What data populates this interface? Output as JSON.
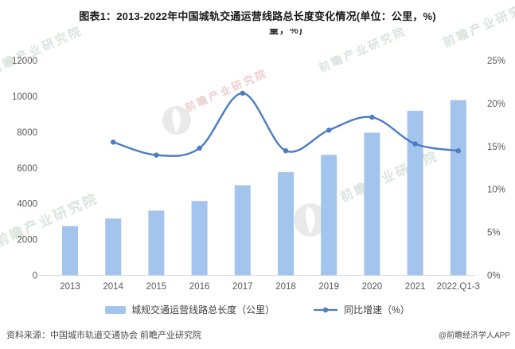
{
  "header": {
    "title": "图表1：2013-2022年中国城轨交通运营线路总长度变化情况(单位：公里，%)",
    "clipped_line": "量，%)"
  },
  "chart_data": {
    "type": "bar",
    "subtype": "bar-line-combo",
    "categories": [
      "2013",
      "2014",
      "2015",
      "2016",
      "2017",
      "2018",
      "2019",
      "2020",
      "2021",
      "2022.Q1-3"
    ],
    "series": [
      {
        "name": "城规交通运营线路总长度（公里）",
        "type": "bar",
        "axis": "left",
        "values": [
          2746,
          3173,
          3618,
          4153,
          5033,
          5761,
          6730,
          7970,
          9192,
          9788
        ]
      },
      {
        "name": "同比增速（%）",
        "type": "line",
        "axis": "right",
        "values": [
          null,
          15.5,
          14.0,
          14.8,
          21.2,
          14.5,
          16.9,
          18.4,
          15.3,
          14.5
        ]
      }
    ],
    "y_left_ticks": [
      "0",
      "2000",
      "4000",
      "6000",
      "8000",
      "10000",
      "12000"
    ],
    "y_right_ticks": [
      "0%",
      "5%",
      "10%",
      "15%",
      "20%",
      "25%"
    ],
    "ylim_left": [
      0,
      12000
    ],
    "ylim_right": [
      0,
      25
    ],
    "grid": false,
    "legend_position": "bottom",
    "title": "图表1：2013-2022年中国城轨交通运营线路总长度变化情况(单位：公里，%)"
  },
  "legend": {
    "bars_label": "城规交通运营线路总长度（公里）",
    "line_label": "同比增速（%）"
  },
  "footer": {
    "source": "资料来源：中国城市轨道交通协会 前瞻产业研究院",
    "brand": "@前瞻经济学人APP"
  },
  "watermark": {
    "text": "前瞻产业研究院"
  },
  "colors": {
    "bar": "#A3C4EC",
    "line": "#4B7CC4",
    "axis_line": "#D8D8D8",
    "tick_text": "#595959",
    "title_text": "#1A1A1A",
    "footer_text": "#4A4A4A",
    "watermark_green": "rgba(150,178,160,0.35)",
    "watermark_red": "rgba(205,130,125,0.38)",
    "logo_gray": "rgba(120,120,120,0.16)"
  }
}
